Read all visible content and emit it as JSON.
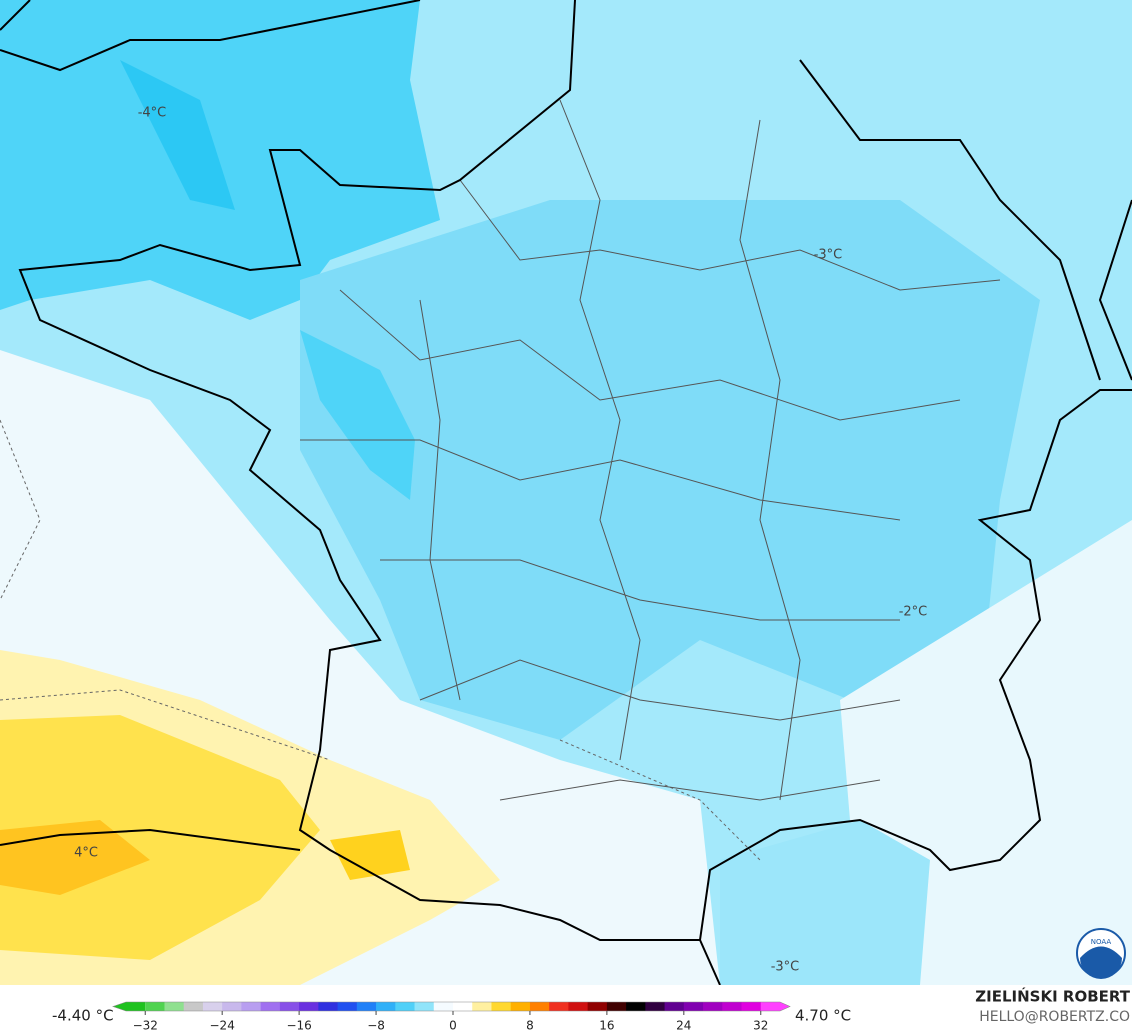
{
  "map": {
    "contour_labels": [
      "-4°C",
      "-3°C",
      "-2°C",
      "4°C",
      "-3°C"
    ]
  },
  "legend": {
    "min_label": "-4.40 °C",
    "max_label": "4.70 °C",
    "lim": [
      -34,
      34
    ],
    "ticks": [
      {
        "value": -32,
        "label": "−32"
      },
      {
        "value": -24,
        "label": "−24"
      },
      {
        "value": -16,
        "label": "−16"
      },
      {
        "value": -8,
        "label": "−8"
      },
      0,
      8,
      16,
      24,
      32
    ],
    "colors": [
      "#1fc21f",
      "#4fd34f",
      "#8fe08f",
      "#c8c8c8",
      "#d8d0ec",
      "#c8b8ec",
      "#b89ef0",
      "#a070f0",
      "#8850e8",
      "#6a30e0",
      "#3030e0",
      "#2050f0",
      "#2080f8",
      "#30b0f8",
      "#50d0f8",
      "#90e4fa",
      "#f5fbff",
      "#ffffff",
      "#fff0a0",
      "#ffd830",
      "#ffb000",
      "#ff8000",
      "#f03020",
      "#d01010",
      "#900000",
      "#400000",
      "#000000",
      "#300040",
      "#600090",
      "#8000b0",
      "#a000c0",
      "#c000d0",
      "#e000e0",
      "#ff40ff"
    ]
  },
  "credit": {
    "name": "ZIELIŃSKI ROBERT",
    "email": "HELLO@ROBERTZ.CO"
  },
  "logo": {
    "text": "NOAA"
  }
}
